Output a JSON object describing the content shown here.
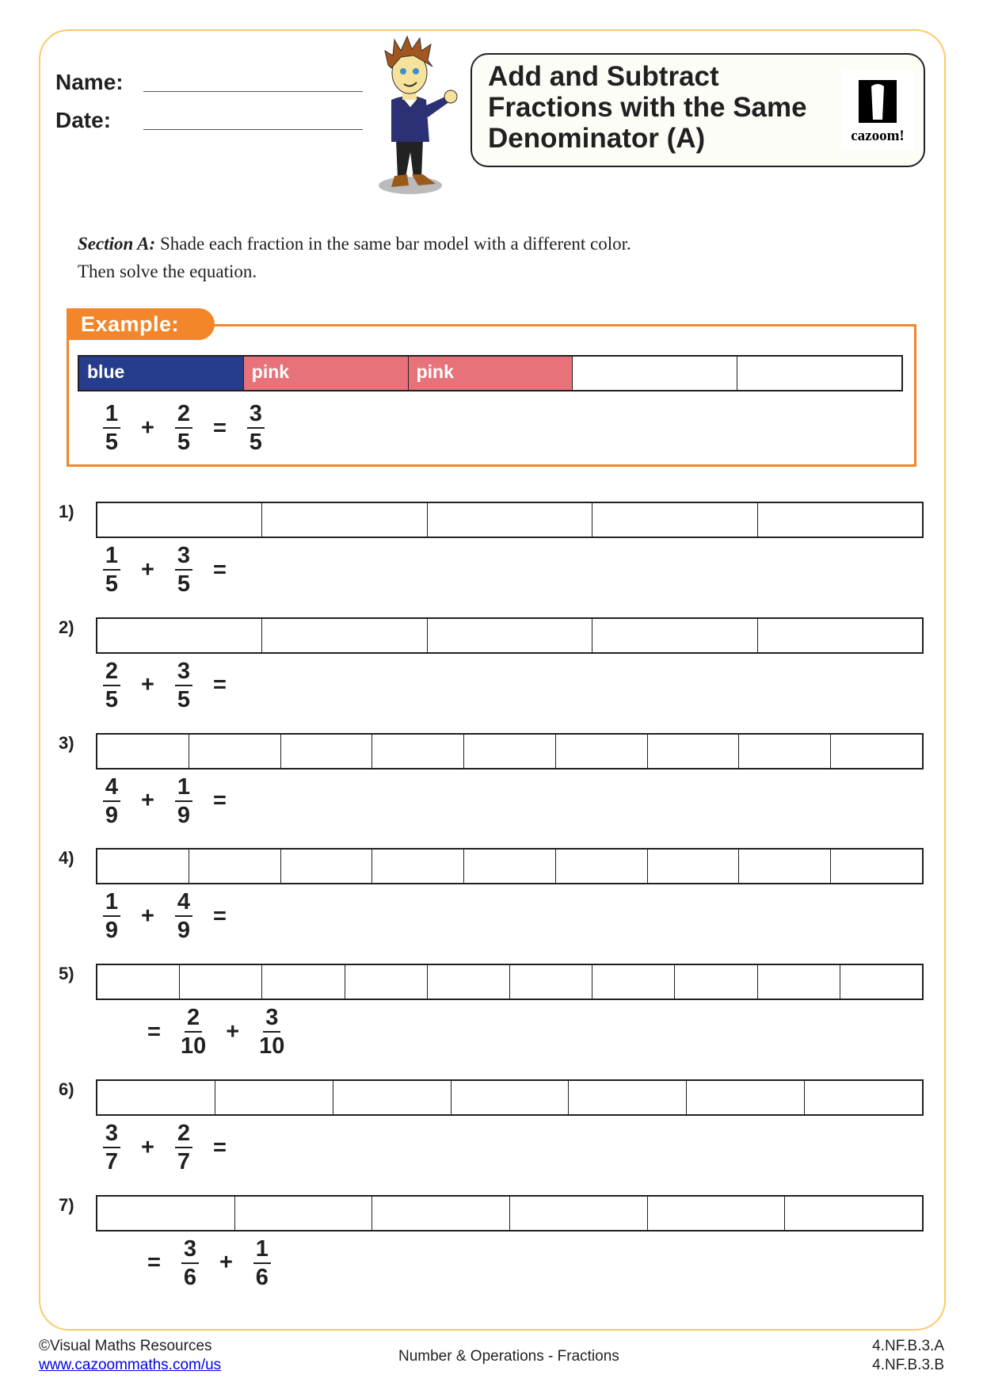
{
  "header": {
    "name_label": "Name:",
    "date_label": "Date:",
    "title": "Add and Subtract Fractions with the Same Denominator (A)",
    "logo_text": "cazoom!"
  },
  "instructions": {
    "section": "Section A:",
    "text": " Shade each fraction in the same bar model with a different color.",
    "text2": "Then solve the equation."
  },
  "example": {
    "label": "Example:",
    "bar": {
      "parts": 5,
      "cells": [
        {
          "label": "blue",
          "color": "#253d8c"
        },
        {
          "label": "pink",
          "color": "#e8727a"
        },
        {
          "label": "pink",
          "color": "#e8727a"
        },
        {
          "label": "",
          "color": "#ffffff"
        },
        {
          "label": "",
          "color": "#ffffff"
        }
      ]
    },
    "equation": [
      {
        "n": "1",
        "d": "5"
      },
      "+",
      {
        "n": "2",
        "d": "5"
      },
      "=",
      {
        "n": "3",
        "d": "5"
      }
    ]
  },
  "problems": [
    {
      "label": "1)",
      "parts": 5,
      "equation": [
        {
          "n": "1",
          "d": "5"
        },
        "+",
        {
          "n": "3",
          "d": "5"
        },
        "="
      ]
    },
    {
      "label": "2)",
      "parts": 5,
      "equation": [
        {
          "n": "2",
          "d": "5"
        },
        "+",
        {
          "n": "3",
          "d": "5"
        },
        "="
      ]
    },
    {
      "label": "3)",
      "parts": 9,
      "equation": [
        {
          "n": "4",
          "d": "9"
        },
        "+",
        {
          "n": "1",
          "d": "9"
        },
        "="
      ]
    },
    {
      "label": "4)",
      "parts": 9,
      "equation": [
        {
          "n": "1",
          "d": "9"
        },
        "+",
        {
          "n": "4",
          "d": "9"
        },
        "="
      ]
    },
    {
      "label": "5)",
      "parts": 10,
      "equation": [
        "=",
        {
          "n": "2",
          "d": "10"
        },
        "+",
        {
          "n": "3",
          "d": "10"
        }
      ]
    },
    {
      "label": "6)",
      "parts": 7,
      "equation": [
        {
          "n": "3",
          "d": "7"
        },
        "+",
        {
          "n": "2",
          "d": "7"
        },
        "="
      ]
    },
    {
      "label": "7)",
      "parts": 6,
      "equation": [
        "=",
        {
          "n": "3",
          "d": "6"
        },
        "+",
        {
          "n": "1",
          "d": "6"
        }
      ]
    }
  ],
  "footer": {
    "copyright": "©Visual Maths Resources",
    "link": "www.cazoommaths.com/us",
    "topic": "Number & Operations - Fractions",
    "standard1": "4.NF.B.3.A",
    "standard2": "4.NF.B.3.B"
  },
  "colors": {
    "frame": "#fcc96b",
    "accent": "#f3862a",
    "blue": "#253d8c",
    "pink": "#e8727a"
  }
}
